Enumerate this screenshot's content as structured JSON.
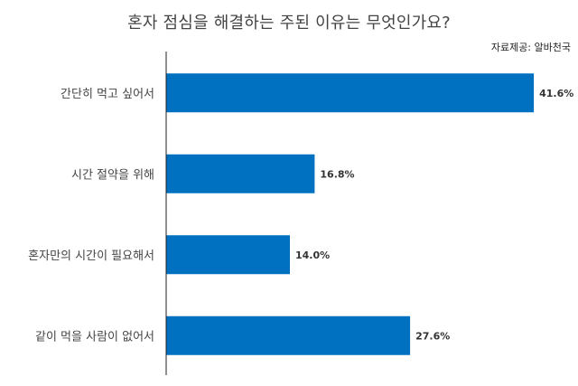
{
  "title": "혼자 점심을 해결하는 주된 이유는 무엇인가요?",
  "source": "자료제공: 알바천국",
  "chart_data": {
    "type": "bar",
    "orientation": "horizontal",
    "categories": [
      "간단히 먹고 싶어서",
      "시간 절약을 위해",
      "혼자만의 시간이 필요해서",
      "같이 먹을 사람이 없어서"
    ],
    "values": [
      41.6,
      16.8,
      14.0,
      27.6
    ],
    "value_labels": [
      "41.6%",
      "16.8%",
      "14.0%",
      "27.6%"
    ],
    "unit": "%",
    "xlim": [
      0,
      42
    ],
    "grid": false,
    "legend": "none",
    "bar_color": "#0070C0"
  }
}
